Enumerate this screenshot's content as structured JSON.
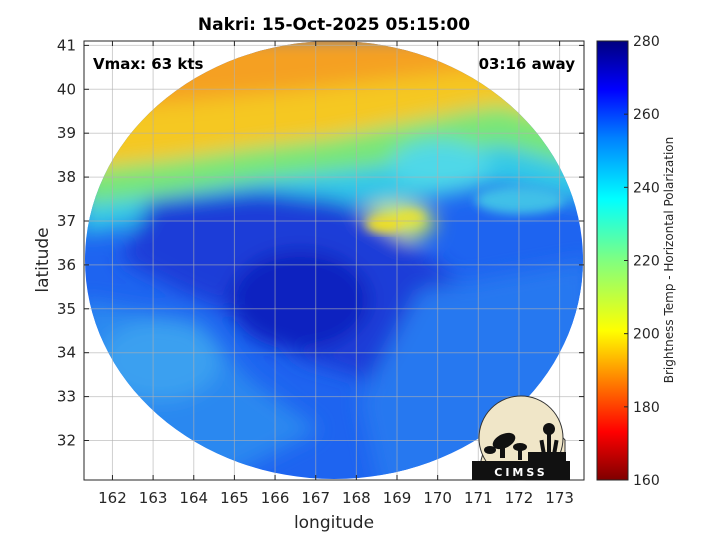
{
  "chart_data": {
    "type": "heatmap",
    "title": "Nakri: 15-Oct-2025 05:15:00",
    "xlabel": "longitude",
    "ylabel": "latitude",
    "xlim": [
      161.3,
      173.6
    ],
    "ylim": [
      31.1,
      41.1
    ],
    "xticks": [
      162,
      163,
      164,
      165,
      166,
      167,
      168,
      169,
      170,
      171,
      172,
      173
    ],
    "yticks": [
      32,
      33,
      34,
      35,
      36,
      37,
      38,
      39,
      40,
      41
    ],
    "grid": true,
    "annotations": {
      "left": "Vmax: 63 kts",
      "right": "03:16 away"
    },
    "colorbar": {
      "label": "Brightness Temp - Horizontal Polarization",
      "range": [
        160,
        280
      ],
      "ticks": [
        160,
        180,
        200,
        220,
        240,
        260,
        280
      ],
      "colormap": "jet"
    },
    "swath_center": [
      167.4,
      36.1
    ],
    "features": {
      "cold_north": {
        "lat_above": 38.5,
        "approx_value": 205
      },
      "eyewall_band": {
        "center": [
          168.9,
          36.9
        ],
        "approx_value": 200
      },
      "warm_core": {
        "center": [
          166.8,
          35.3
        ],
        "approx_value": 268
      }
    }
  },
  "logo": {
    "text": "CIMSS"
  }
}
